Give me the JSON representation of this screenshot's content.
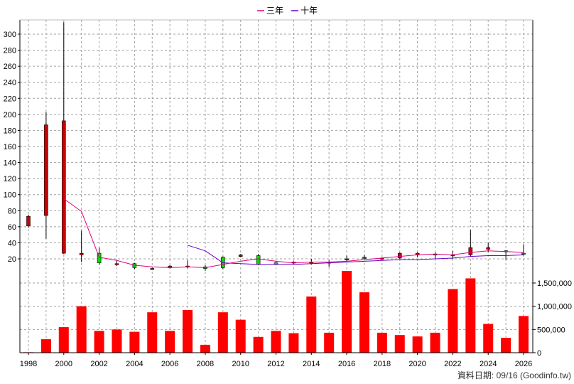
{
  "chart_data": {
    "type": "candlestick+bar",
    "legend": [
      {
        "label": "三年",
        "color": "#e0007a"
      },
      {
        "label": "十年",
        "color": "#6a00c8"
      }
    ],
    "x_ticks": [
      "1998",
      "2000",
      "2002",
      "2004",
      "2006",
      "2008",
      "2010",
      "2012",
      "2014",
      "2016",
      "2018",
      "2020",
      "2022",
      "2024",
      "2026"
    ],
    "price_axis": {
      "ylim": [
        0,
        320
      ],
      "ticks": [
        20,
        40,
        60,
        80,
        100,
        120,
        140,
        160,
        180,
        200,
        220,
        240,
        260,
        280,
        300
      ]
    },
    "volume_axis": {
      "ylim": [
        0,
        1900000
      ],
      "ticks": [
        0,
        500000,
        1000000,
        1500000
      ],
      "tick_labels": [
        "0",
        "500,000",
        "1,000,000",
        "1,500,000"
      ]
    },
    "candles": [
      {
        "year": 1998,
        "open": 61,
        "close": 73,
        "high": 75,
        "low": 59
      },
      {
        "year": 1999,
        "open": 74,
        "close": 187,
        "high": 203,
        "low": 45
      },
      {
        "year": 2000,
        "open": 27,
        "close": 192,
        "high": 315,
        "low": 26
      },
      {
        "year": 2001,
        "open": 25,
        "close": 27,
        "high": 55,
        "low": 16
      },
      {
        "year": 2002,
        "open": 27,
        "close": 15,
        "high": 34,
        "low": 13
      },
      {
        "year": 2003,
        "open": 13,
        "close": 14,
        "high": 18,
        "low": 11
      },
      {
        "year": 2004,
        "open": 14,
        "close": 9,
        "high": 15,
        "low": 7
      },
      {
        "year": 2005,
        "open": 8,
        "close": 8,
        "high": 9,
        "low": 7
      },
      {
        "year": 2006,
        "open": 9,
        "close": 11,
        "high": 12,
        "low": 8
      },
      {
        "year": 2007,
        "open": 10,
        "close": 11,
        "high": 18,
        "low": 8
      },
      {
        "year": 2008,
        "open": 10,
        "close": 8,
        "high": 12,
        "low": 5
      },
      {
        "year": 2009,
        "open": 22,
        "close": 9,
        "high": 23,
        "low": 7
      },
      {
        "year": 2010,
        "open": 23,
        "close": 25,
        "high": 26,
        "low": 22
      },
      {
        "year": 2011,
        "open": 24,
        "close": 13,
        "high": 26,
        "low": 12
      },
      {
        "year": 2012,
        "open": 15,
        "close": 13,
        "high": 17,
        "low": 12
      },
      {
        "year": 2013,
        "open": 15,
        "close": 16,
        "high": 17,
        "low": 14
      },
      {
        "year": 2014,
        "open": 16,
        "close": 16,
        "high": 20,
        "low": 13
      },
      {
        "year": 2015,
        "open": 16,
        "close": 16,
        "high": 18,
        "low": 10
      },
      {
        "year": 2016,
        "open": 19,
        "close": 20,
        "high": 24,
        "low": 16
      },
      {
        "year": 2017,
        "open": 22,
        "close": 22,
        "high": 25,
        "low": 20
      },
      {
        "year": 2018,
        "open": 20,
        "close": 21,
        "high": 22,
        "low": 19
      },
      {
        "year": 2019,
        "open": 21,
        "close": 27,
        "high": 28,
        "low": 20
      },
      {
        "year": 2020,
        "open": 25,
        "close": 27,
        "high": 28,
        "low": 22
      },
      {
        "year": 2021,
        "open": 26,
        "close": 25,
        "high": 28,
        "low": 20
      },
      {
        "year": 2022,
        "open": 24,
        "close": 25,
        "high": 30,
        "low": 20
      },
      {
        "year": 2023,
        "open": 25,
        "close": 34,
        "high": 56,
        "low": 23
      },
      {
        "year": 2024,
        "open": 32,
        "close": 34,
        "high": 40,
        "low": 28
      },
      {
        "year": 2025,
        "open": 30,
        "close": 29,
        "high": 31,
        "low": 19
      },
      {
        "year": 2026,
        "open": 27,
        "close": 26,
        "high": 38,
        "low": 24
      }
    ],
    "ma3": [
      {
        "year": 2000,
        "value": 95
      },
      {
        "year": 2001,
        "value": 79
      },
      {
        "year": 2002,
        "value": 22
      },
      {
        "year": 2003,
        "value": 18
      },
      {
        "year": 2004,
        "value": 12
      },
      {
        "year": 2005,
        "value": 10
      },
      {
        "year": 2006,
        "value": 9
      },
      {
        "year": 2007,
        "value": 10
      },
      {
        "year": 2008,
        "value": 9
      },
      {
        "year": 2009,
        "value": 13
      },
      {
        "year": 2010,
        "value": 17
      },
      {
        "year": 2011,
        "value": 20
      },
      {
        "year": 2012,
        "value": 17
      },
      {
        "year": 2013,
        "value": 15
      },
      {
        "year": 2014,
        "value": 16
      },
      {
        "year": 2015,
        "value": 16
      },
      {
        "year": 2016,
        "value": 17
      },
      {
        "year": 2017,
        "value": 19
      },
      {
        "year": 2018,
        "value": 21
      },
      {
        "year": 2019,
        "value": 23
      },
      {
        "year": 2020,
        "value": 25
      },
      {
        "year": 2021,
        "value": 26
      },
      {
        "year": 2022,
        "value": 25
      },
      {
        "year": 2023,
        "value": 28
      },
      {
        "year": 2024,
        "value": 30
      },
      {
        "year": 2025,
        "value": 29
      },
      {
        "year": 2026,
        "value": 28
      }
    ],
    "ma10": [
      {
        "year": 2007,
        "value": 37
      },
      {
        "year": 2008,
        "value": 30
      },
      {
        "year": 2009,
        "value": 15
      },
      {
        "year": 2010,
        "value": 14
      },
      {
        "year": 2011,
        "value": 13
      },
      {
        "year": 2012,
        "value": 13
      },
      {
        "year": 2013,
        "value": 13
      },
      {
        "year": 2014,
        "value": 14
      },
      {
        "year": 2015,
        "value": 15
      },
      {
        "year": 2016,
        "value": 16
      },
      {
        "year": 2017,
        "value": 17
      },
      {
        "year": 2018,
        "value": 18
      },
      {
        "year": 2019,
        "value": 19
      },
      {
        "year": 2020,
        "value": 19
      },
      {
        "year": 2021,
        "value": 20
      },
      {
        "year": 2022,
        "value": 21
      },
      {
        "year": 2023,
        "value": 23
      },
      {
        "year": 2024,
        "value": 24
      },
      {
        "year": 2025,
        "value": 24
      },
      {
        "year": 2026,
        "value": 25
      }
    ],
    "volume": [
      {
        "year": 1998,
        "value": 10000
      },
      {
        "year": 1999,
        "value": 290000
      },
      {
        "year": 2000,
        "value": 550000
      },
      {
        "year": 2001,
        "value": 1000000
      },
      {
        "year": 2002,
        "value": 470000
      },
      {
        "year": 2003,
        "value": 500000
      },
      {
        "year": 2004,
        "value": 450000
      },
      {
        "year": 2005,
        "value": 870000
      },
      {
        "year": 2006,
        "value": 470000
      },
      {
        "year": 2007,
        "value": 920000
      },
      {
        "year": 2008,
        "value": 170000
      },
      {
        "year": 2009,
        "value": 870000
      },
      {
        "year": 2010,
        "value": 710000
      },
      {
        "year": 2011,
        "value": 340000
      },
      {
        "year": 2012,
        "value": 470000
      },
      {
        "year": 2013,
        "value": 420000
      },
      {
        "year": 2014,
        "value": 1210000
      },
      {
        "year": 2015,
        "value": 430000
      },
      {
        "year": 2016,
        "value": 1760000
      },
      {
        "year": 2017,
        "value": 1300000
      },
      {
        "year": 2018,
        "value": 430000
      },
      {
        "year": 2019,
        "value": 380000
      },
      {
        "year": 2020,
        "value": 350000
      },
      {
        "year": 2021,
        "value": 430000
      },
      {
        "year": 2022,
        "value": 1370000
      },
      {
        "year": 2023,
        "value": 1600000
      },
      {
        "year": 2024,
        "value": 620000
      },
      {
        "year": 2025,
        "value": 320000
      },
      {
        "year": 2026,
        "value": 790000
      }
    ],
    "colors": {
      "up": "#cc0000",
      "down": "#00dd00",
      "volume": "#ff0000",
      "grid": "#a0a0a0",
      "wick": "#000000"
    },
    "grid": true
  },
  "footer": {
    "date_text": "資料日期: 09/16",
    "source_text": "(Goodinfo.tw)"
  }
}
